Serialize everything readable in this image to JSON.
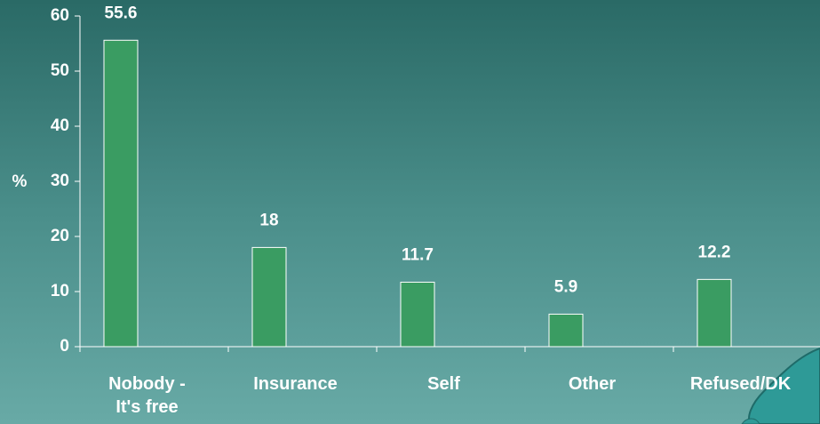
{
  "chart_data": {
    "type": "bar",
    "y_label": "%",
    "categories": [
      "Nobody - It's free",
      "Insurance",
      "Self",
      "Other",
      "Refused/DK"
    ],
    "values": [
      55.6,
      18,
      11.7,
      5.9,
      12.2
    ],
    "color": "#3a9c62",
    "ylim": [
      0,
      60
    ],
    "yticks": [
      0,
      10,
      20,
      30,
      40,
      50,
      60
    ]
  }
}
